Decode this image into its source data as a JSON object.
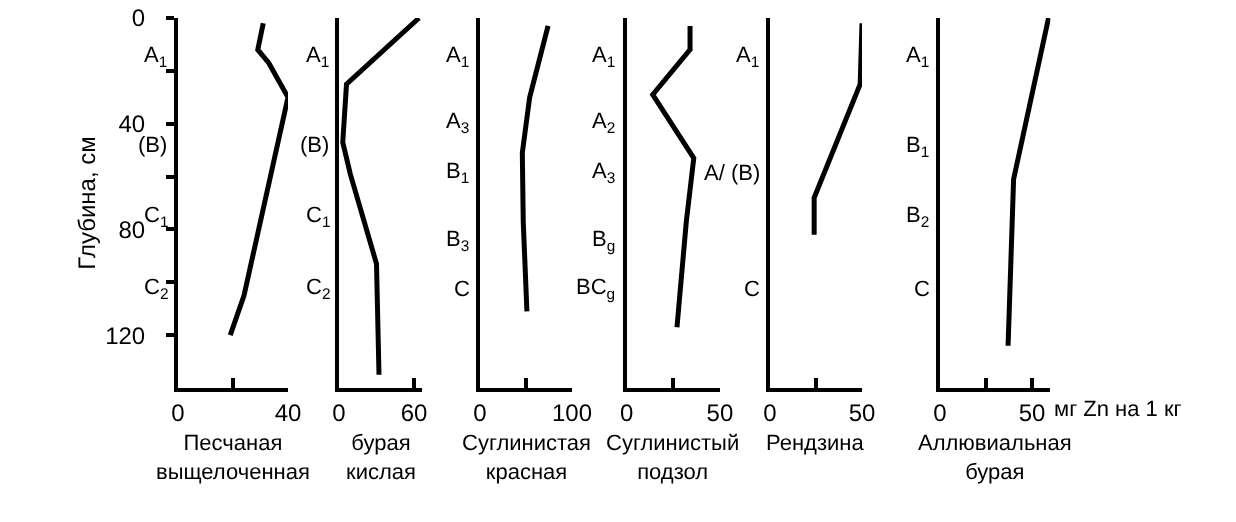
{
  "chart_data": [
    {
      "type": "line",
      "xlim": [
        0,
        40
      ],
      "xticks": [
        0,
        {
          "value": 20,
          "label": null
        },
        40
      ],
      "ylim": [
        140,
        0
      ],
      "yticks": [
        0,
        {
          "value": 20,
          "label": null
        },
        40,
        {
          "value": 60,
          "label": null
        },
        80,
        {
          "value": 100,
          "label": null
        },
        120
      ],
      "ylabel": "Глубина, см",
      "title": "Песчаная\nвыщелоченная",
      "series": [
        {
          "color": "#000000",
          "x": [
            31,
            29,
            33,
            40,
            24,
            19
          ],
          "values": [
            2,
            12,
            17,
            30,
            105,
            120
          ]
        }
      ],
      "annotations": [
        "A$_{1}$",
        "(B)",
        "C$_{1}$",
        "C$_{2}$"
      ]
    },
    {
      "type": "line",
      "xlim": [
        0,
        66
      ],
      "xticks": [
        0,
        60
      ],
      "ylim": [
        140,
        0
      ],
      "tick_labels": "x",
      "title": "бурая\nкислая",
      "series": [
        {
          "color": "#000000",
          "x": [
            64,
            6,
            3,
            9,
            30,
            32
          ],
          "values": [
            0,
            25,
            47,
            59,
            93,
            135
          ]
        }
      ],
      "annotations": [
        "A$_{1}$",
        "(B)",
        "C$_{1}$",
        "C$_{2}$"
      ]
    },
    {
      "type": "line",
      "xlim": [
        0,
        100
      ],
      "xticks": [
        0,
        {
          "value": 50,
          "label": null
        },
        100
      ],
      "ylim": [
        140,
        0
      ],
      "tick_labels": "x",
      "title": "Суглинистая\nкрасная",
      "series": [
        {
          "color": "#000000",
          "x": [
            74,
            54,
            46,
            47,
            51
          ],
          "values": [
            3,
            30,
            51,
            77,
            111
          ]
        }
      ],
      "annotations": [
        "A$_{1}$",
        "A$_{3}$",
        "B$_{1}$",
        "B$_{3}$",
        "C"
      ]
    },
    {
      "type": "line",
      "xlim": [
        0,
        50
      ],
      "xticks": [
        0,
        {
          "value": 25,
          "label": null
        },
        50
      ],
      "ylim": [
        140,
        0
      ],
      "tick_labels": "x",
      "title": "Суглинистый\nподзол",
      "series": [
        {
          "color": "#000000",
          "x": [
            34,
            34,
            14,
            36,
            32,
            27
          ],
          "values": [
            3,
            12,
            29,
            53,
            77,
            117
          ]
        }
      ],
      "annotations": [
        "A$_{1}$",
        "A$_{2}$",
        "A$_{3}$",
        "B$_{g}$",
        "BC$_{g}$"
      ]
    },
    {
      "type": "line",
      "xlim": [
        0,
        50
      ],
      "xticks": [
        0,
        {
          "value": 25,
          "label": null
        },
        50
      ],
      "ylim": [
        140,
        0
      ],
      "tick_labels": "x",
      "title": "Рендзина",
      "series": [
        {
          "color": "#000000",
          "x": [
            50,
            49,
            24,
            24
          ],
          "values": [
            2,
            25,
            68,
            82
          ]
        }
      ],
      "annotations": [
        "A$_{1}$",
        "A/ (B)",
        "C"
      ]
    },
    {
      "type": "line",
      "xlim": [
        0,
        60
      ],
      "xticks": [
        0,
        {
          "value": 25,
          "label": null
        },
        50
      ],
      "ylim": [
        140,
        0
      ],
      "tick_labels": "x",
      "title": "Аллювиальная\nбурая",
      "xlabel": "мг Zn на 1 кг",
      "series": [
        {
          "color": "#000000",
          "x": [
            59,
            40,
            37
          ],
          "values": [
            0,
            61,
            124
          ]
        }
      ],
      "annotations": [
        "A$_{1}$",
        "B$_{1}$",
        "B$_{2}$",
        "C"
      ]
    }
  ]
}
